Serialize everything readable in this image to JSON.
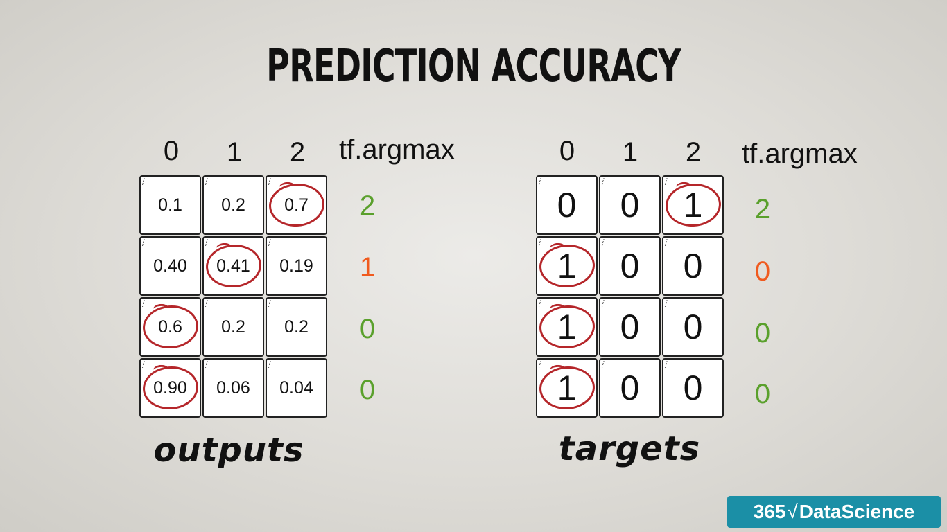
{
  "title": "PREDICTION ACCURACY",
  "column_headers": [
    "0",
    "1",
    "2"
  ],
  "argmax_label": "tf.argmax",
  "outputs": {
    "label": "outputs",
    "rows": [
      [
        "0.1",
        "0.2",
        "0.7"
      ],
      [
        "0.40",
        "0.41",
        "0.19"
      ],
      [
        "0.6",
        "0.2",
        "0.2"
      ],
      [
        "0.90",
        "0.06",
        "0.04"
      ]
    ],
    "circled_index": [
      2,
      1,
      0,
      0
    ],
    "argmax": [
      "2",
      "1",
      "0",
      "0"
    ],
    "argmax_colors": [
      "#5aa02c",
      "#f05a1e",
      "#5aa02c",
      "#5aa02c"
    ]
  },
  "targets": {
    "label": "targets",
    "rows": [
      [
        "0",
        "0",
        "1"
      ],
      [
        "1",
        "0",
        "0"
      ],
      [
        "1",
        "0",
        "0"
      ],
      [
        "1",
        "0",
        "0"
      ]
    ],
    "circled_index": [
      2,
      0,
      0,
      0
    ],
    "argmax": [
      "2",
      "0",
      "0",
      "0"
    ],
    "argmax_colors": [
      "#5aa02c",
      "#f05a1e",
      "#5aa02c",
      "#5aa02c"
    ]
  },
  "circle_color": "#b5262a",
  "brand": {
    "left": "365",
    "right": "DataScience",
    "sqrt_icon": "square-root-icon",
    "color": "#1b8fa6"
  }
}
